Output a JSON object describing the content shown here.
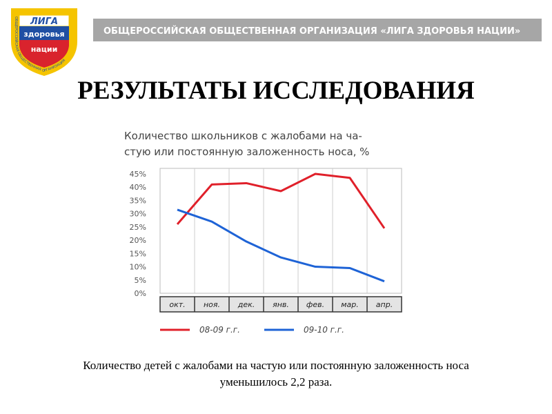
{
  "header": {
    "logo": {
      "ring": "ОБЩЕРОССИЙСКАЯ ОБЩЕСТВЕННАЯ ОРГАНИЗАЦИЯ",
      "line1": "ЛИГА",
      "line2": "здоровья",
      "line3": "нации"
    },
    "banner": "ОБЩЕРОССИЙСКАЯ ОБЩЕСТВЕННАЯ ОРГАНИЗАЦИЯ «ЛИГА ЗДОРОВЬЯ НАЦИИ»",
    "title": "РЕЗУЛЬТАТЫ ИССЛЕДОВАНИЯ"
  },
  "chart_data": {
    "type": "line",
    "title": [
      "Количество школьников с жалобами на ча-",
      "стую или постоянную заложенность носа, %"
    ],
    "categories": [
      "окт.",
      "ноя.",
      "дек.",
      "янв.",
      "фев.",
      "мар.",
      "апр."
    ],
    "series": [
      {
        "name": "08-09 г.г.",
        "color": "#e0202a",
        "values": [
          26,
          41,
          41.5,
          38.5,
          45,
          43.5,
          24.5
        ]
      },
      {
        "name": "09-10 г.г.",
        "color": "#1e63d6",
        "values": [
          31.5,
          27,
          19.5,
          13.5,
          10,
          9.5,
          4.5
        ]
      }
    ],
    "ylim": [
      0,
      45
    ],
    "yticks": [
      {
        "value": 0,
        "label": "0%"
      },
      {
        "value": 5,
        "label": "5%"
      },
      {
        "value": 10,
        "label": "10%"
      },
      {
        "value": 15,
        "label": "15%"
      },
      {
        "value": 20,
        "label": "20%"
      },
      {
        "value": 25,
        "label": "25%"
      },
      {
        "value": 30,
        "label": "30%"
      },
      {
        "value": 35,
        "label": "35%"
      },
      {
        "value": 40,
        "label": "40%"
      },
      {
        "value": 45,
        "label": "45%"
      }
    ],
    "grid": "x"
  },
  "caption": [
    "Количество детей с жалобами на частую или постоянную заложенность носа",
    "уменьшилось 2,2  раза."
  ]
}
